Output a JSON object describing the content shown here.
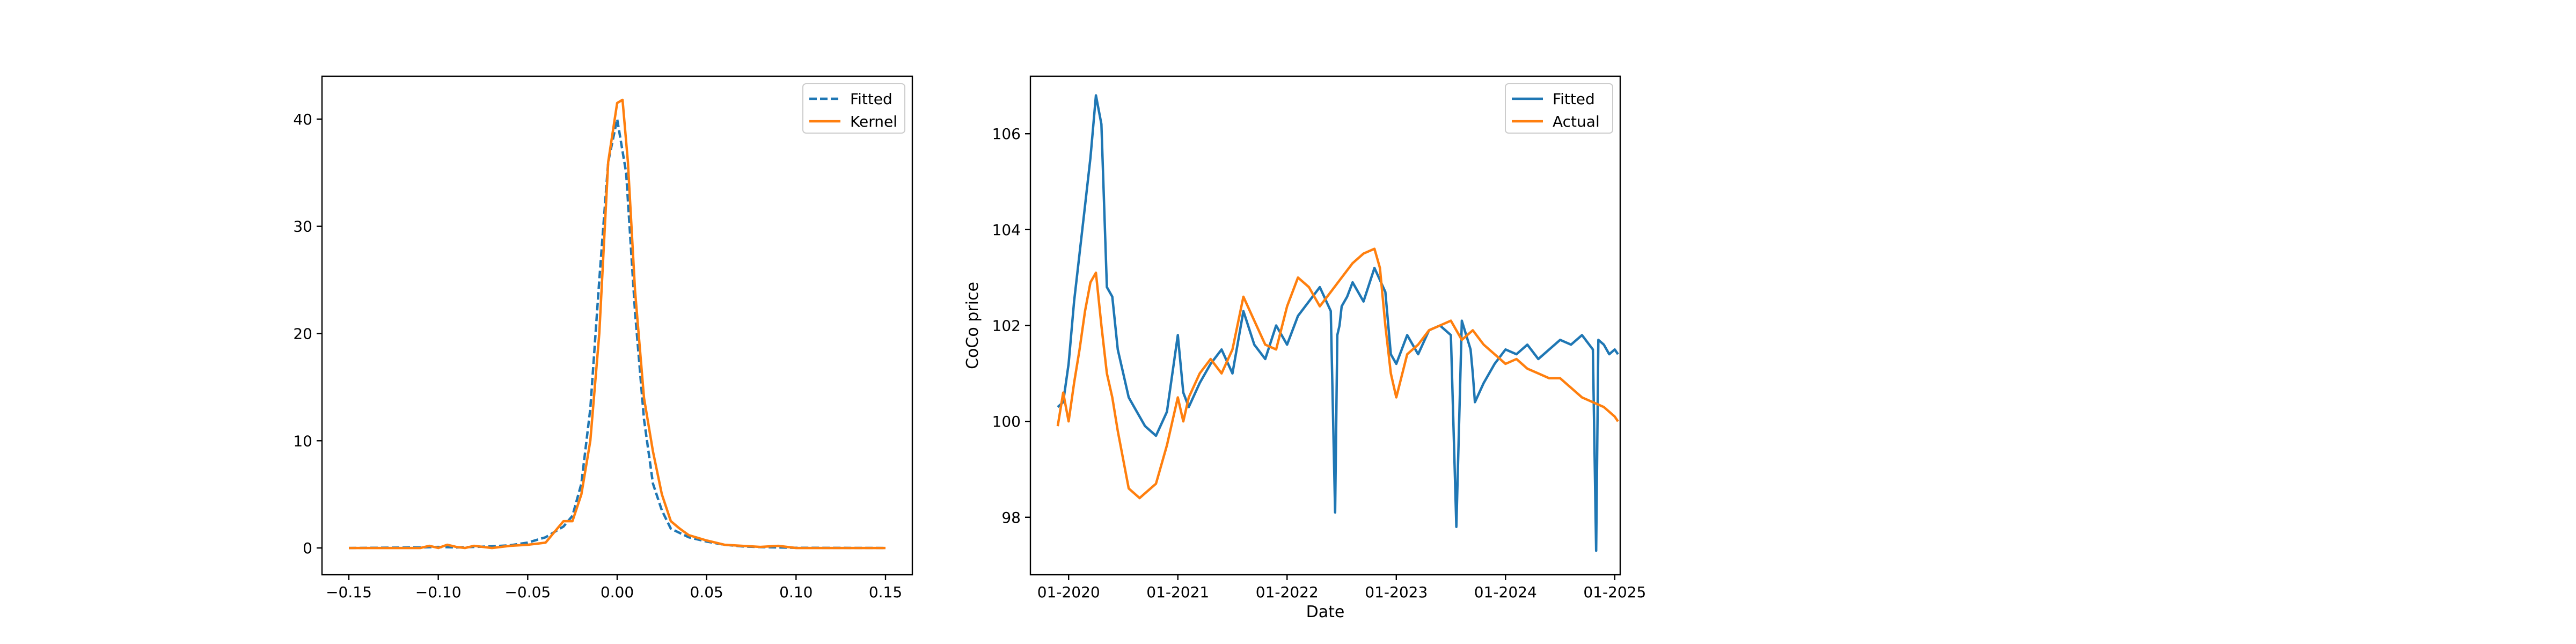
{
  "chart_data": [
    {
      "type": "line",
      "title": "",
      "xlabel": "",
      "ylabel": "",
      "xlim": [
        -0.165,
        0.165
      ],
      "ylim": [
        -2.5,
        44
      ],
      "xticks": [
        -0.15,
        -0.1,
        -0.05,
        0.0,
        0.05,
        0.1,
        0.15
      ],
      "xtick_labels": [
        "−0.15",
        "−0.10",
        "−0.05",
        "0.00",
        "0.05",
        "0.10",
        "0.15"
      ],
      "yticks": [
        0,
        10,
        20,
        30,
        40
      ],
      "ytick_labels": [
        "0",
        "10",
        "20",
        "30",
        "40"
      ],
      "legend": {
        "position": "top-right",
        "entries": [
          "Fitted",
          "Kernel"
        ]
      },
      "series": [
        {
          "name": "Fitted",
          "style": "dashed",
          "color": "#1f77b4",
          "x": [
            -0.15,
            -0.11,
            -0.1,
            -0.09,
            -0.08,
            -0.07,
            -0.06,
            -0.05,
            -0.04,
            -0.03,
            -0.025,
            -0.02,
            -0.015,
            -0.01,
            -0.005,
            0.0,
            0.005,
            0.01,
            0.015,
            0.02,
            0.025,
            0.03,
            0.04,
            0.05,
            0.06,
            0.07,
            0.08,
            0.09,
            0.1,
            0.15
          ],
          "y": [
            0.0,
            0.05,
            0.1,
            0.05,
            0.1,
            0.15,
            0.25,
            0.5,
            1.0,
            2.0,
            3.0,
            6.0,
            13.0,
            25.0,
            36.0,
            40.0,
            35.0,
            22.0,
            12.0,
            6.0,
            3.5,
            1.8,
            1.0,
            0.6,
            0.3,
            0.15,
            0.08,
            0.05,
            0.02,
            0.0
          ]
        },
        {
          "name": "Kernel",
          "style": "solid",
          "color": "#ff7f0e",
          "x": [
            -0.15,
            -0.11,
            -0.105,
            -0.1,
            -0.095,
            -0.09,
            -0.085,
            -0.08,
            -0.07,
            -0.06,
            -0.05,
            -0.045,
            -0.04,
            -0.035,
            -0.03,
            -0.025,
            -0.02,
            -0.015,
            -0.01,
            -0.005,
            0.0,
            0.003,
            0.006,
            0.01,
            0.015,
            0.02,
            0.025,
            0.03,
            0.035,
            0.04,
            0.05,
            0.06,
            0.07,
            0.08,
            0.09,
            0.1,
            0.15
          ],
          "y": [
            0.0,
            0.0,
            0.2,
            0.0,
            0.3,
            0.1,
            0.0,
            0.2,
            0.0,
            0.2,
            0.3,
            0.4,
            0.5,
            1.5,
            2.5,
            2.5,
            5.0,
            10.0,
            20.0,
            36.0,
            41.5,
            41.8,
            36.0,
            24.0,
            14.0,
            9.0,
            5.0,
            2.5,
            1.8,
            1.2,
            0.7,
            0.3,
            0.2,
            0.1,
            0.2,
            0.0,
            0.0
          ]
        }
      ]
    },
    {
      "type": "line",
      "title": "",
      "xlabel": "Date",
      "ylabel": "CoCo price",
      "xlim": [
        2019.65,
        2025.05
      ],
      "ylim": [
        96.8,
        107.2
      ],
      "xticks": [
        2020.0,
        2021.0,
        2022.0,
        2023.0,
        2024.0,
        2025.0
      ],
      "xtick_labels": [
        "01-2020",
        "01-2021",
        "01-2022",
        "01-2023",
        "01-2024",
        "01-2025"
      ],
      "yticks": [
        98,
        100,
        102,
        104,
        106
      ],
      "ytick_labels": [
        "98",
        "100",
        "102",
        "104",
        "106"
      ],
      "legend": {
        "position": "top-right",
        "entries": [
          "Fitted",
          "Actual"
        ]
      },
      "series": [
        {
          "name": "Fitted",
          "style": "solid",
          "color": "#1f77b4",
          "x": [
            2019.9,
            2019.95,
            2020.0,
            2020.05,
            2020.1,
            2020.15,
            2020.2,
            2020.25,
            2020.3,
            2020.35,
            2020.4,
            2020.45,
            2020.5,
            2020.55,
            2020.6,
            2020.65,
            2020.7,
            2020.8,
            2020.9,
            2021.0,
            2021.05,
            2021.1,
            2021.2,
            2021.3,
            2021.4,
            2021.5,
            2021.6,
            2021.7,
            2021.8,
            2021.9,
            2022.0,
            2022.1,
            2022.2,
            2022.3,
            2022.4,
            2022.44,
            2022.46,
            2022.48,
            2022.5,
            2022.55,
            2022.6,
            2022.7,
            2022.8,
            2022.9,
            2022.95,
            2023.0,
            2023.1,
            2023.2,
            2023.3,
            2023.4,
            2023.5,
            2023.55,
            2023.6,
            2023.68,
            2023.7,
            2023.72,
            2023.8,
            2023.9,
            2024.0,
            2024.1,
            2024.2,
            2024.3,
            2024.4,
            2024.5,
            2024.6,
            2024.7,
            2024.8,
            2024.83,
            2024.85,
            2024.9,
            2024.95,
            2025.0,
            2025.03
          ],
          "y": [
            100.3,
            100.4,
            101.2,
            102.5,
            103.5,
            104.5,
            105.5,
            106.8,
            106.2,
            102.8,
            102.6,
            101.5,
            101.0,
            100.5,
            100.3,
            100.1,
            99.9,
            99.7,
            100.2,
            101.8,
            100.6,
            100.3,
            100.8,
            101.2,
            101.5,
            101.0,
            102.3,
            101.6,
            101.3,
            102.0,
            101.6,
            102.2,
            102.5,
            102.8,
            102.3,
            98.1,
            101.8,
            102.0,
            102.4,
            102.6,
            102.9,
            102.5,
            103.2,
            102.7,
            101.4,
            101.2,
            101.8,
            101.4,
            101.9,
            102.0,
            101.8,
            97.8,
            102.1,
            101.5,
            101.0,
            100.4,
            100.8,
            101.2,
            101.5,
            101.4,
            101.6,
            101.3,
            101.5,
            101.7,
            101.6,
            101.8,
            101.5,
            97.3,
            101.7,
            101.6,
            101.4,
            101.5,
            101.4
          ]
        },
        {
          "name": "Actual",
          "style": "solid",
          "color": "#ff7f0e",
          "x": [
            2019.9,
            2019.95,
            2020.0,
            2020.05,
            2020.1,
            2020.15,
            2020.2,
            2020.25,
            2020.3,
            2020.35,
            2020.4,
            2020.45,
            2020.5,
            2020.55,
            2020.6,
            2020.65,
            2020.7,
            2020.8,
            2020.9,
            2021.0,
            2021.05,
            2021.1,
            2021.2,
            2021.3,
            2021.4,
            2021.5,
            2021.6,
            2021.7,
            2021.8,
            2021.9,
            2022.0,
            2022.1,
            2022.2,
            2022.3,
            2022.4,
            2022.5,
            2022.6,
            2022.7,
            2022.8,
            2022.85,
            2022.9,
            2022.95,
            2023.0,
            2023.1,
            2023.2,
            2023.3,
            2023.4,
            2023.5,
            2023.6,
            2023.7,
            2023.8,
            2023.9,
            2024.0,
            2024.1,
            2024.2,
            2024.3,
            2024.4,
            2024.5,
            2024.6,
            2024.7,
            2024.8,
            2024.9,
            2025.0,
            2025.03
          ],
          "y": [
            99.9,
            100.6,
            100.0,
            100.8,
            101.5,
            102.3,
            102.9,
            103.1,
            102.0,
            101.0,
            100.5,
            99.8,
            99.2,
            98.6,
            98.5,
            98.4,
            98.5,
            98.7,
            99.5,
            100.5,
            100.0,
            100.5,
            101.0,
            101.3,
            101.0,
            101.5,
            102.6,
            102.1,
            101.6,
            101.5,
            102.4,
            103.0,
            102.8,
            102.4,
            102.7,
            103.0,
            103.3,
            103.5,
            103.6,
            103.2,
            102.0,
            101.0,
            100.5,
            101.4,
            101.6,
            101.9,
            102.0,
            102.1,
            101.7,
            101.9,
            101.6,
            101.4,
            101.2,
            101.3,
            101.1,
            101.0,
            100.9,
            100.9,
            100.7,
            100.5,
            100.4,
            100.3,
            100.1,
            100.0
          ]
        }
      ]
    }
  ]
}
